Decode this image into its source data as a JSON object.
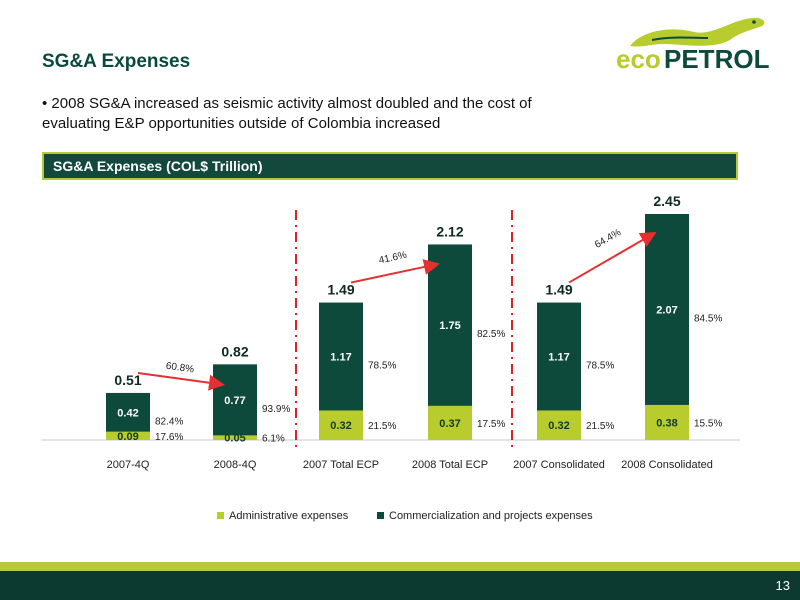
{
  "slide": {
    "title": "SG&A Expenses",
    "bullet": "• 2008 SG&A increased as seismic activity almost doubled and the cost of evaluating E&P opportunities outside of Colombia increased",
    "banner": "SG&A Expenses (COL$ Trillion)",
    "page_number": "13"
  },
  "logo": {
    "text_eco": "eco",
    "text_petrol": "PETROL"
  },
  "colors": {
    "admin": "#b9cc2e",
    "commercial": "#0e4a3b",
    "arrow": "#e63030",
    "banner_bg": "#12493c",
    "accent": "#b7c93a"
  },
  "chart_data": {
    "type": "bar",
    "stacked": true,
    "categories": [
      "2007-4Q",
      "2008-4Q",
      "2007 Total ECP",
      "2008 Total ECP",
      "2007 Consolidated",
      "2008 Consolidated"
    ],
    "series": [
      {
        "name": "Administrative expenses",
        "values": [
          0.09,
          0.05,
          0.32,
          0.37,
          0.32,
          0.38
        ],
        "labels": [
          "0.09",
          "0.05",
          "0.32",
          "0.37",
          "0.32",
          "0.38"
        ],
        "percents": [
          "17.6%",
          "6.1%",
          "21.5%",
          "17.5%",
          "21.5%",
          "15.5%"
        ]
      },
      {
        "name": "Commercialization and projects expenses",
        "values": [
          0.42,
          0.77,
          1.17,
          1.75,
          1.17,
          2.07
        ],
        "labels": [
          "0.42",
          "0.77",
          "1.17",
          "1.75",
          "1.17",
          "2.07"
        ],
        "percents": [
          "82.4%",
          "93.9%",
          "78.5%",
          "82.5%",
          "78.5%",
          "84.5%"
        ]
      }
    ],
    "totals": [
      0.51,
      0.82,
      1.49,
      2.12,
      1.49,
      2.45
    ],
    "total_labels": [
      "0.51",
      "0.82",
      "1.49",
      "2.12",
      "1.49",
      "2.45"
    ],
    "growth": [
      {
        "from": 0,
        "to": 1,
        "label": "60.8%"
      },
      {
        "from": 2,
        "to": 3,
        "label": "41.6%"
      },
      {
        "from": 4,
        "to": 5,
        "label": "64.4%"
      }
    ],
    "ylim": [
      0,
      2.45
    ],
    "legend_position": "bottom",
    "grid": false
  }
}
